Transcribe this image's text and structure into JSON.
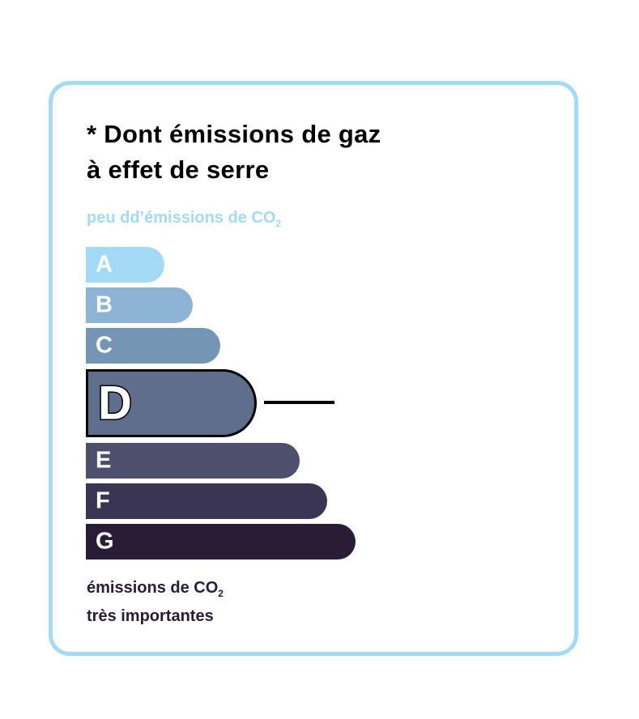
{
  "title_line1": "* Dont émissions de gaz",
  "title_line2": "à effet de serre",
  "top_label": "peu dd’émissions de CO",
  "top_label_sub": "2",
  "bottom_label_line1": "émissions de CO",
  "bottom_label_sub": "2",
  "bottom_label_line2": "très importantes",
  "selected_class": "D",
  "classes": [
    {
      "letter": "A",
      "color": "#a3daf5"
    },
    {
      "letter": "B",
      "color": "#8db4d4"
    },
    {
      "letter": "C",
      "color": "#7595b4"
    },
    {
      "letter": "D",
      "color": "#5f6e8c"
    },
    {
      "letter": "E",
      "color": "#4e4f6c"
    },
    {
      "letter": "F",
      "color": "#3a3552"
    },
    {
      "letter": "G",
      "color": "#2a1c35"
    }
  ]
}
